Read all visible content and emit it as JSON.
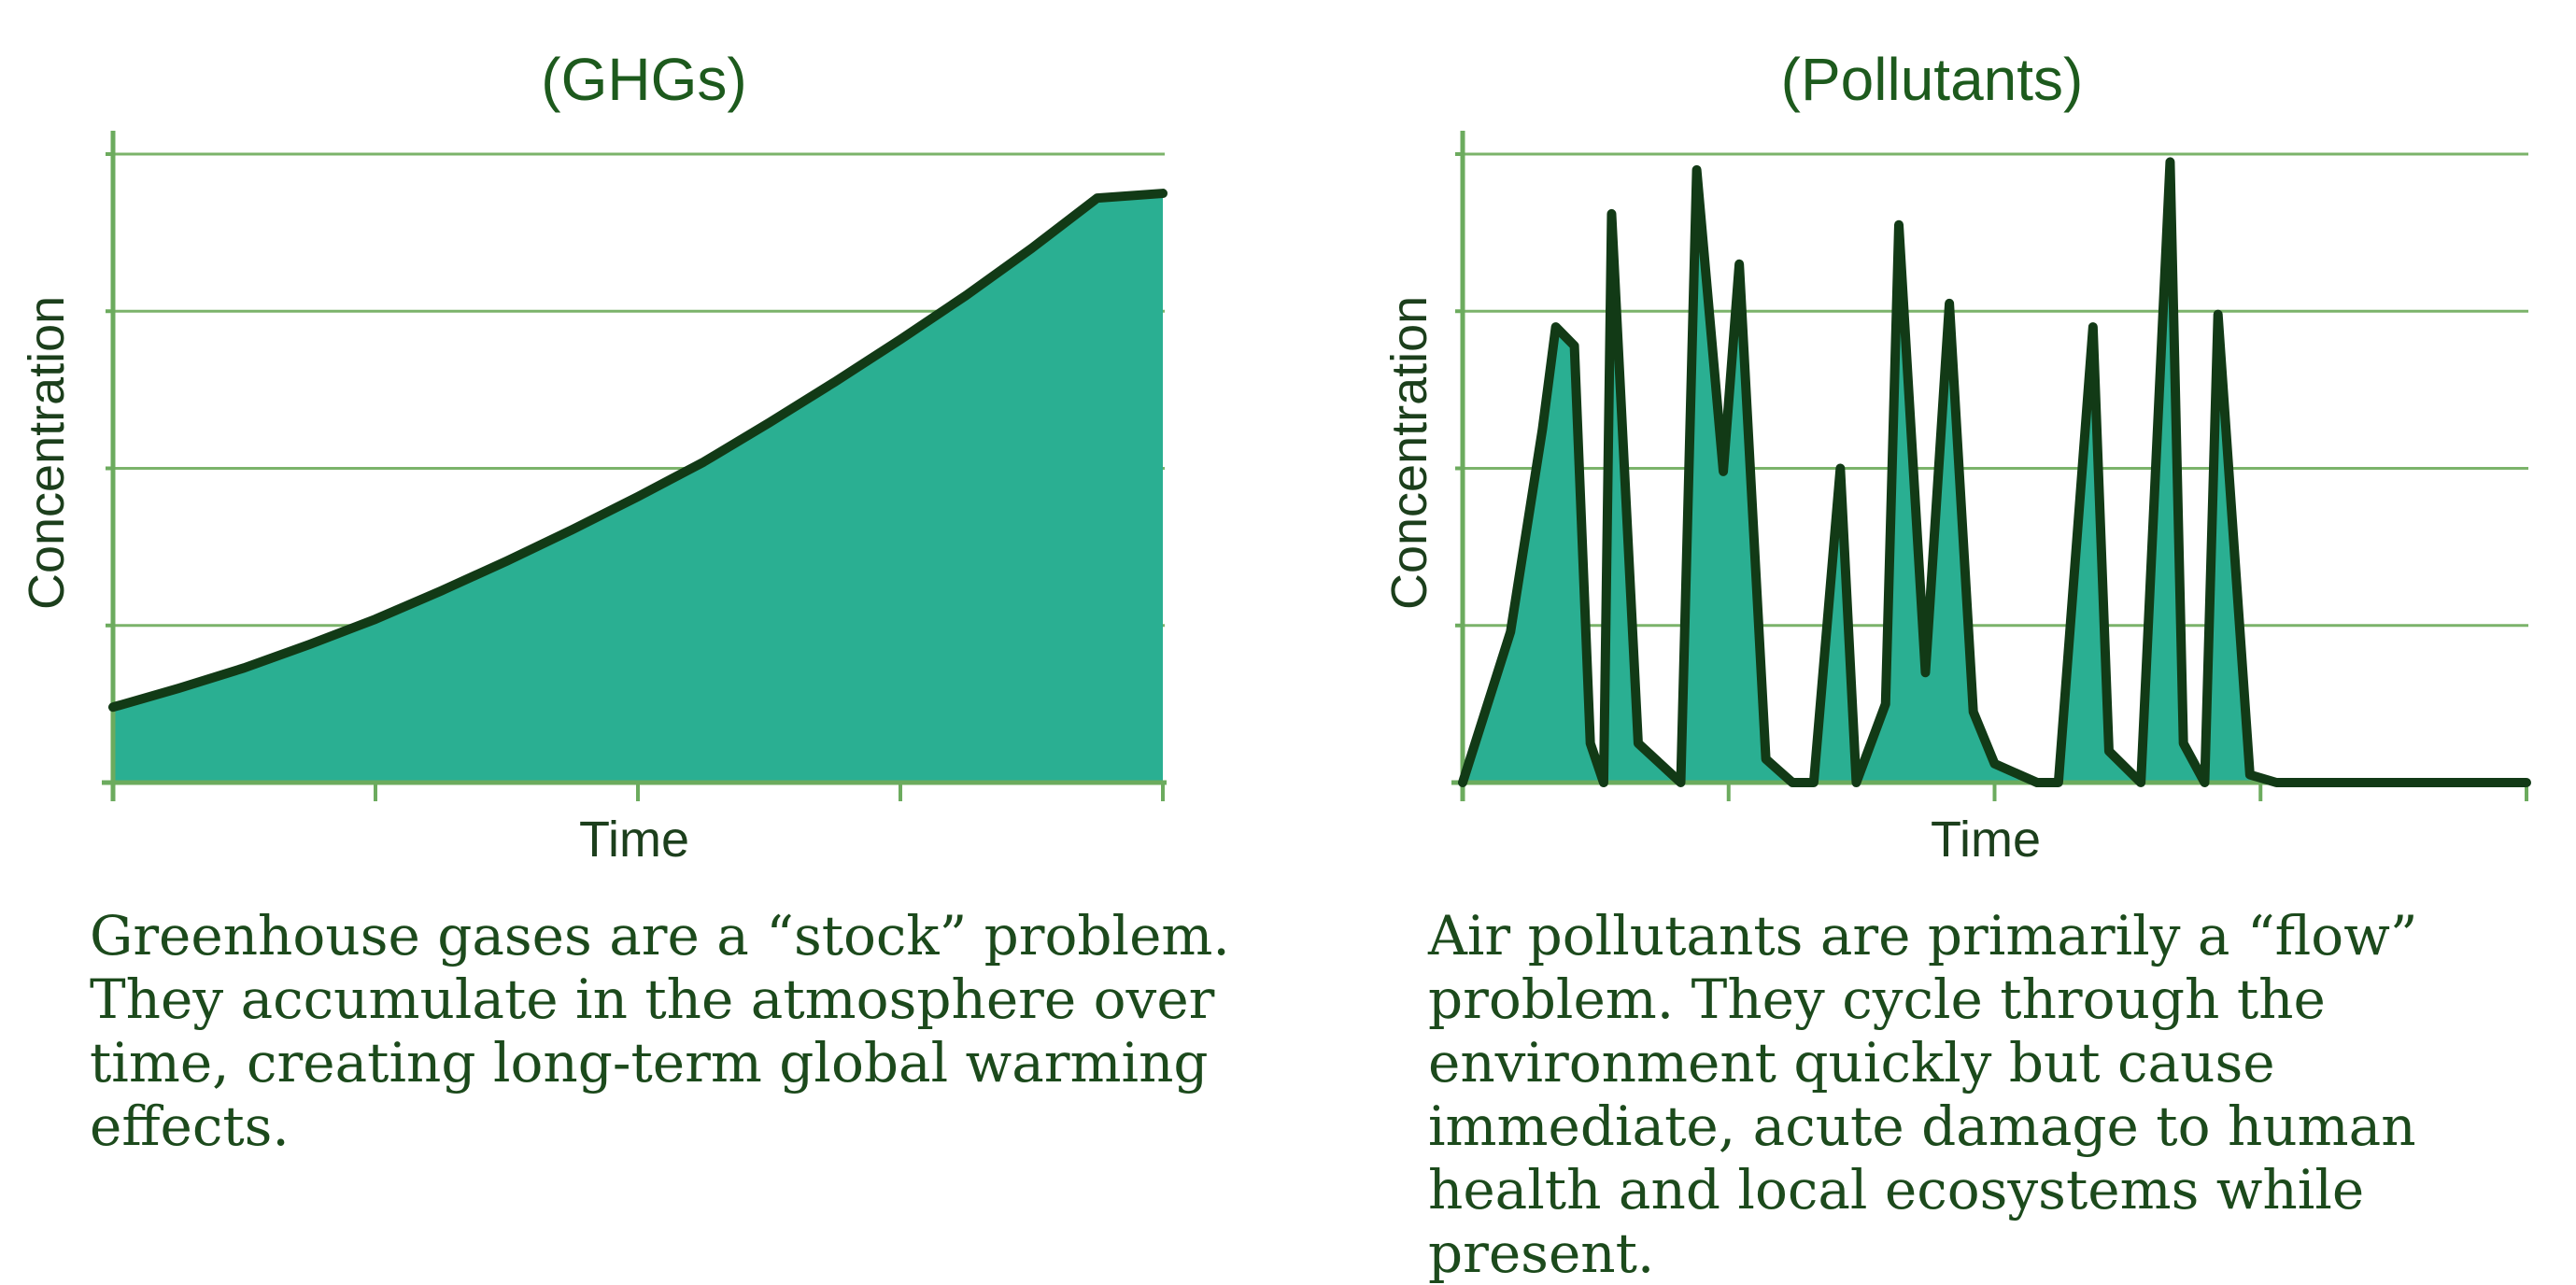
{
  "chart_data": [
    {
      "type": "area",
      "title": "(GHGs)",
      "xlabel": "Time",
      "ylabel": "Concentration",
      "grid": true,
      "ylim": [
        0,
        4
      ],
      "xlim": [
        0,
        4
      ],
      "x": [
        0,
        0.25,
        0.5,
        0.75,
        1.0,
        1.25,
        1.5,
        1.75,
        2.0,
        2.25,
        2.5,
        2.75,
        3.0,
        3.25,
        3.5,
        3.75,
        4.0
      ],
      "values": [
        0.48,
        0.6,
        0.73,
        0.88,
        1.04,
        1.22,
        1.41,
        1.61,
        1.82,
        2.04,
        2.29,
        2.55,
        2.82,
        3.1,
        3.4,
        3.72,
        3.75
      ],
      "caption": "Greenhouse gases are a “stock” problem. They accumulate in the atmosphere over time, creating long-term global warming effects."
    },
    {
      "type": "area",
      "title": "(Pollutants)",
      "xlabel": "Time",
      "ylabel": "Concentration",
      "grid": true,
      "ylim": [
        0,
        4
      ],
      "xlim": [
        0,
        4
      ],
      "x": [
        0,
        0.18,
        0.3,
        0.35,
        0.42,
        0.48,
        0.53,
        0.56,
        0.66,
        0.82,
        0.88,
        0.98,
        1.04,
        1.14,
        1.24,
        1.32,
        1.42,
        1.48,
        1.59,
        1.64,
        1.74,
        1.83,
        1.92,
        2.0,
        2.16,
        2.24,
        2.37,
        2.43,
        2.55,
        2.66,
        2.71,
        2.79,
        2.84,
        2.96,
        3.06,
        3.16,
        3.27,
        3.34,
        3.42,
        3.52,
        3.64,
        4.0
      ],
      "values": [
        0,
        0.96,
        2.25,
        2.9,
        2.78,
        0.25,
        0,
        3.62,
        0.25,
        0,
        3.9,
        1.98,
        3.3,
        0.15,
        0,
        0,
        2,
        0,
        0.5,
        3.55,
        0.7,
        3.05,
        0.45,
        0.12,
        0,
        0,
        2.9,
        0.2,
        0,
        3.95,
        0.25,
        0,
        2.98,
        0.05,
        0,
        0,
        0,
        0,
        0,
        0,
        0,
        0
      ],
      "caption": "Air pollutants are primarily a “flow” problem. They cycle through the environment quickly but cause immediate, acute damage to human health and local ecosystems while present."
    }
  ],
  "colors": {
    "fill": "#2aaf92",
    "line": "#123a16",
    "axis": "#6cab5e",
    "grid": "#7bb36a",
    "text_dark": "#1c3f1c",
    "caption": "#1c4a1c"
  }
}
